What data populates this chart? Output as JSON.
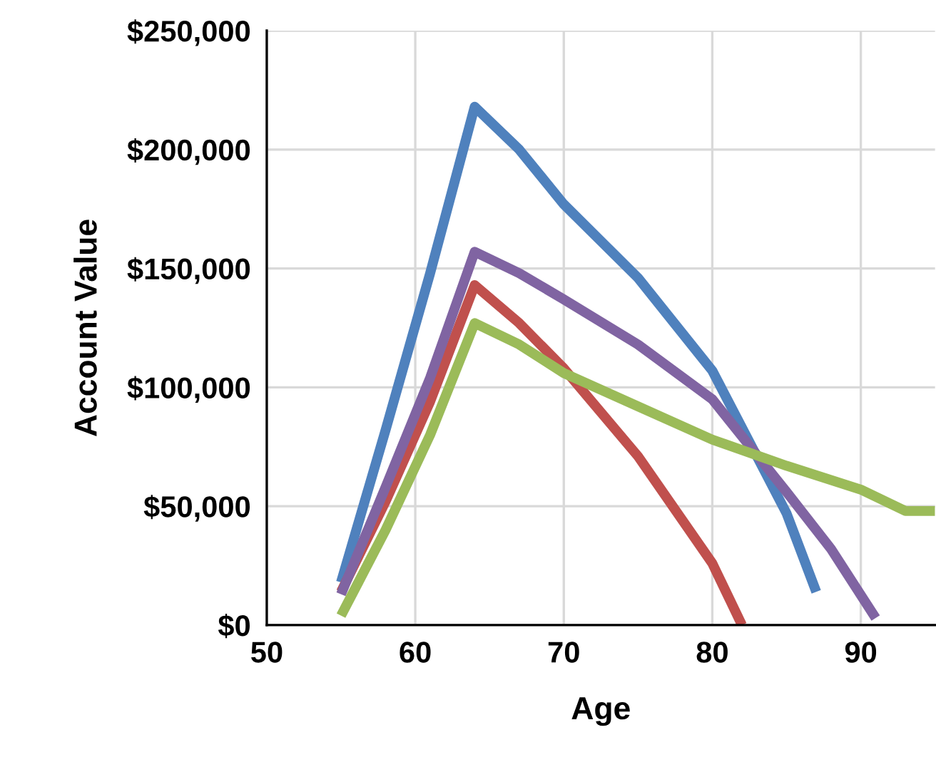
{
  "chart_data": {
    "type": "line",
    "xlabel": "Age",
    "ylabel": "Account Value",
    "xlim": [
      50,
      95
    ],
    "xticks": [
      50,
      60,
      70,
      80,
      90
    ],
    "ylim": [
      0,
      250000
    ],
    "yticks": [
      {
        "value": 0,
        "label": "$0"
      },
      {
        "value": 50000,
        "label": "$50,000"
      },
      {
        "value": 100000,
        "label": "$100,000"
      },
      {
        "value": 150000,
        "label": "$150,000"
      },
      {
        "value": 200000,
        "label": "$200,000"
      },
      {
        "value": 250000,
        "label": "$250,000"
      }
    ],
    "grid": true,
    "marker": "none",
    "line_style": "solid",
    "series": [
      {
        "color": "#4f81bd",
        "x": [
          55,
          58,
          61,
          64,
          67,
          70,
          75,
          80,
          85,
          87
        ],
        "values": [
          18000,
          82000,
          148000,
          218000,
          200000,
          177000,
          146000,
          107000,
          47000,
          14000
        ]
      },
      {
        "color": "#c0504d",
        "x": [
          55,
          58,
          61,
          64,
          67,
          70,
          75,
          80,
          82
        ],
        "values": [
          14000,
          52000,
          94000,
          143000,
          127000,
          108000,
          71000,
          26000,
          0
        ]
      },
      {
        "color": "#8064a2",
        "x": [
          55,
          58,
          61,
          64,
          67,
          70,
          75,
          80,
          85,
          88,
          91
        ],
        "values": [
          13000,
          58000,
          104000,
          157000,
          148000,
          137000,
          118000,
          95000,
          56000,
          32000,
          3000
        ]
      },
      {
        "color": "#9bbb59",
        "x": [
          55,
          58,
          61,
          64,
          67,
          70,
          75,
          80,
          85,
          90,
          93,
          95
        ],
        "values": [
          4000,
          40000,
          80000,
          127000,
          118000,
          106000,
          92000,
          78000,
          67000,
          57000,
          48000,
          48000
        ]
      }
    ]
  }
}
